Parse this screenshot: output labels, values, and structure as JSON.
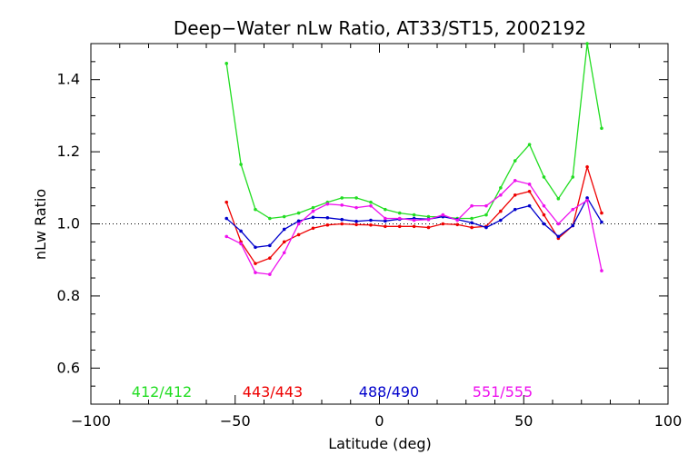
{
  "chart_data": {
    "type": "line",
    "title": "Deep−Water nLw Ratio, AT33/ST15, 2002192",
    "xlabel": "Latitude (deg)",
    "ylabel": "nLw Ratio",
    "xlim": [
      -100,
      100
    ],
    "ylim": [
      0.5,
      1.5
    ],
    "x_ticks": [
      -100,
      -50,
      0,
      50,
      100
    ],
    "x_tick_labels": [
      "−100",
      "−50",
      "0",
      "50",
      "100"
    ],
    "y_ticks": [
      0.6,
      0.8,
      1.0,
      1.2,
      1.4
    ],
    "y_tick_labels": [
      "0.6",
      "0.8",
      "1.0",
      "1.2",
      "1.4"
    ],
    "reference_line": {
      "y": 1.0,
      "style": "dotted"
    },
    "x": [
      -53,
      -48,
      -43,
      -38,
      -33,
      -28,
      -23,
      -18,
      -13,
      -8,
      -3,
      2,
      7,
      12,
      17,
      22,
      27,
      32,
      37,
      42,
      47,
      52,
      57,
      62,
      67,
      72,
      77
    ],
    "series": [
      {
        "name": "412/412",
        "color": "#22dd22",
        "values": [
          1.445,
          1.165,
          1.04,
          1.015,
          1.02,
          1.03,
          1.045,
          1.06,
          1.072,
          1.072,
          1.06,
          1.04,
          1.03,
          1.025,
          1.02,
          1.02,
          1.015,
          1.015,
          1.025,
          1.1,
          1.175,
          1.22,
          1.13,
          1.07,
          1.13,
          1.5,
          1.265
        ]
      },
      {
        "name": "443/443",
        "color": "#ee0000",
        "values": [
          1.06,
          0.95,
          0.89,
          0.905,
          0.95,
          0.97,
          0.988,
          0.997,
          1.0,
          0.998,
          0.997,
          0.993,
          0.993,
          0.993,
          0.99,
          1.0,
          0.998,
          0.99,
          0.993,
          1.035,
          1.08,
          1.09,
          1.025,
          0.96,
          0.995,
          1.158,
          1.03
        ]
      },
      {
        "name": "488/490",
        "color": "#0000cc",
        "values": [
          1.015,
          0.98,
          0.935,
          0.94,
          0.985,
          1.008,
          1.018,
          1.017,
          1.012,
          1.007,
          1.01,
          1.008,
          1.013,
          1.015,
          1.013,
          1.02,
          1.012,
          1.003,
          0.99,
          1.01,
          1.04,
          1.05,
          1.0,
          0.965,
          0.995,
          1.072,
          1.005
        ]
      },
      {
        "name": "551/555",
        "color": "#ee11ee",
        "values": [
          0.965,
          0.945,
          0.865,
          0.86,
          0.92,
          1.0,
          1.035,
          1.055,
          1.052,
          1.045,
          1.05,
          1.015,
          1.015,
          1.01,
          1.012,
          1.025,
          1.01,
          1.05,
          1.05,
          1.08,
          1.12,
          1.11,
          1.05,
          1.0,
          1.04,
          1.065,
          0.87
        ]
      }
    ],
    "legend_position": "bottom inside plot"
  }
}
